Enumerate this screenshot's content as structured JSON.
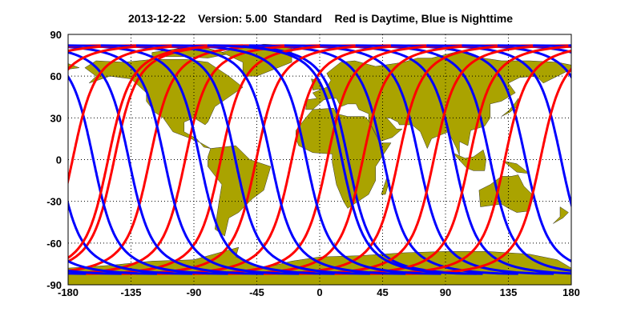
{
  "chart_data": {
    "type": "line",
    "title": "2013-12-22    Version: 5.00  Standard    Red is Daytime, Blue is Nighttime",
    "xlim": [
      -180,
      180
    ],
    "ylim": [
      -90,
      90
    ],
    "x_ticks": [
      "-180",
      "-135",
      "-90",
      "-45",
      "0",
      "45",
      "90",
      "135",
      "180"
    ],
    "y_ticks": [
      "90",
      "60",
      "30",
      "0",
      "-30",
      "-60",
      "-90"
    ],
    "grid": true,
    "max_latitude": 82,
    "descending_node_longitudes": [
      -147,
      -121.6,
      -96.2,
      -70.8,
      -45.4,
      -20,
      5.4,
      30.8,
      56.2,
      81.6,
      107,
      132.4,
      157.8,
      -176.8,
      -151.4
    ],
    "series": [
      {
        "name": "Daytime",
        "color": "#ff0000"
      },
      {
        "name": "Nighttime",
        "color": "#0000ff"
      }
    ],
    "land_color": "#aaa300"
  }
}
